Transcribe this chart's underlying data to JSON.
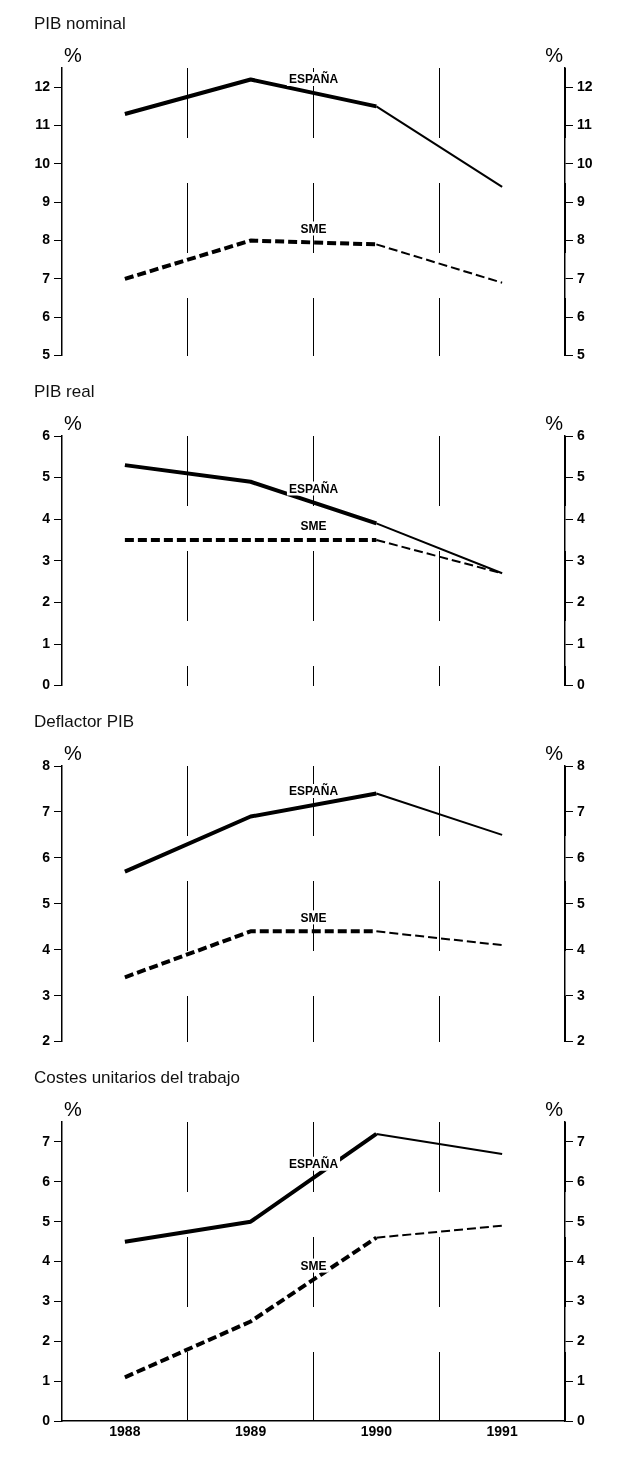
{
  "chart_data": [
    {
      "type": "line",
      "title": "PIB nominal",
      "ylabel": "%",
      "y2label": "%",
      "categories": [
        "1988",
        "1989",
        "1990",
        "1991"
      ],
      "ylim": [
        5,
        12.5
      ],
      "yticks": [
        5,
        6,
        7,
        8,
        9,
        10,
        11,
        12
      ],
      "y2lim": [
        5,
        12.5
      ],
      "y2ticks": [
        5,
        6,
        7,
        8,
        9,
        10,
        11,
        12
      ],
      "grid": "x",
      "legend": false,
      "marker": "none",
      "tick_labels": "y",
      "series": [
        {
          "name": "ESPAÑA",
          "color": "#000000",
          "line_style": "solid",
          "values": [
            11.3,
            12.2,
            11.5,
            null
          ]
        },
        {
          "color": "#000000",
          "line_style": "solid",
          "values": [
            null,
            null,
            11.5,
            9.4
          ]
        },
        {
          "name": "SME",
          "color": "#000000",
          "line_style": "dashed",
          "values": [
            7.0,
            8.0,
            7.9,
            null
          ]
        },
        {
          "color": "#000000",
          "line_style": "dashed",
          "values": [
            null,
            null,
            7.9,
            6.9
          ]
        }
      ]
    },
    {
      "type": "line",
      "title": "PIB real",
      "ylabel": "%",
      "y2label": "%",
      "categories": [
        "1988",
        "1989",
        "1990",
        "1991"
      ],
      "ylim": [
        0,
        6
      ],
      "yticks": [
        0,
        1,
        2,
        3,
        4,
        5,
        6
      ],
      "y2lim": [
        0,
        6
      ],
      "y2ticks": [
        0,
        1,
        2,
        3,
        4,
        5,
        6
      ],
      "grid": "x",
      "legend": false,
      "marker": "none",
      "tick_labels": "y",
      "series": [
        {
          "name": "ESPAÑA",
          "color": "#000000",
          "line_style": "solid",
          "values": [
            5.3,
            4.9,
            3.9,
            null
          ]
        },
        {
          "color": "#000000",
          "line_style": "solid",
          "values": [
            null,
            null,
            3.9,
            2.7
          ]
        },
        {
          "name": "SME",
          "color": "#000000",
          "line_style": "dashed",
          "values": [
            3.5,
            3.5,
            3.5,
            null
          ]
        },
        {
          "color": "#000000",
          "line_style": "dashed",
          "values": [
            null,
            null,
            3.5,
            2.7
          ]
        }
      ]
    },
    {
      "type": "line",
      "title": "Deflactor PIB",
      "ylabel": "%",
      "y2label": "%",
      "categories": [
        "1988",
        "1989",
        "1990",
        "1991"
      ],
      "ylim": [
        2,
        8
      ],
      "yticks": [
        2,
        3,
        4,
        5,
        6,
        7,
        8
      ],
      "y2lim": [
        2,
        8
      ],
      "y2ticks": [
        2,
        3,
        4,
        5,
        6,
        7,
        8
      ],
      "grid": "x",
      "legend": false,
      "marker": "none",
      "tick_labels": "y",
      "series": [
        {
          "name": "ESPAÑA",
          "color": "#000000",
          "line_style": "solid",
          "values": [
            5.7,
            6.9,
            7.4,
            null
          ]
        },
        {
          "color": "#000000",
          "line_style": "solid",
          "values": [
            null,
            null,
            7.4,
            6.5
          ]
        },
        {
          "name": "SME",
          "color": "#000000",
          "line_style": "dashed",
          "values": [
            3.4,
            4.4,
            4.4,
            null
          ]
        },
        {
          "color": "#000000",
          "line_style": "dashed",
          "values": [
            null,
            null,
            4.4,
            4.1
          ]
        }
      ]
    },
    {
      "type": "line",
      "title": "Costes unitarios del trabajo",
      "ylabel": "%",
      "y2label": "%",
      "categories": [
        "1988",
        "1989",
        "1990",
        "1991"
      ],
      "ylim": [
        0,
        7.5
      ],
      "yticks": [
        0,
        1,
        2,
        3,
        4,
        5,
        6,
        7
      ],
      "y2lim": [
        0,
        7.5
      ],
      "y2ticks": [
        0,
        1,
        2,
        3,
        4,
        5,
        6,
        7
      ],
      "grid": "x",
      "legend": false,
      "marker": "none",
      "series": [
        {
          "name": "ESPAÑA",
          "color": "#000000",
          "line_style": "solid",
          "values": [
            4.5,
            5.0,
            7.2,
            null
          ]
        },
        {
          "color": "#000000",
          "line_style": "solid",
          "values": [
            null,
            null,
            7.2,
            6.7
          ]
        },
        {
          "name": "SME",
          "color": "#000000",
          "line_style": "dashed",
          "values": [
            1.1,
            2.5,
            4.6,
            null
          ]
        },
        {
          "color": "#000000",
          "line_style": "dashed",
          "values": [
            null,
            null,
            4.6,
            4.9
          ]
        }
      ]
    }
  ]
}
